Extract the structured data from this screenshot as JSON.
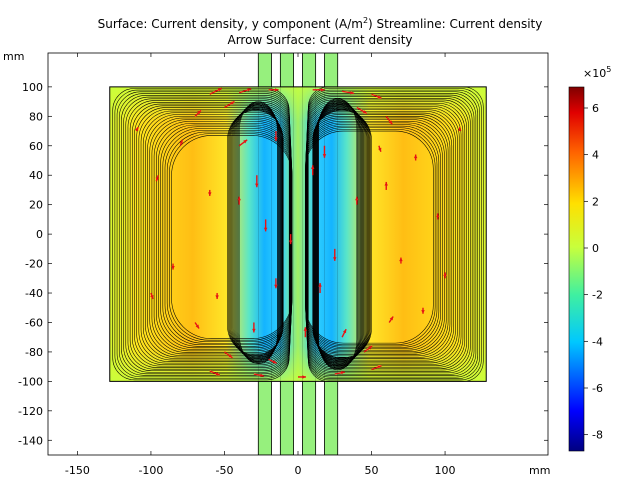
{
  "figure": {
    "title_prefix": "Surface: Current density, y component (A/m",
    "title_sup": "2",
    "title_suffix": ")  Streamline: Current density",
    "subtitle": "Arrow Surface: Current density"
  },
  "chart_data": {
    "type": "heatmap",
    "title": "Surface: Current density, y component (A/m2)  Streamline: Current density",
    "subtitle": "Arrow Surface: Current density",
    "xlabel": "mm",
    "ylabel": "mm",
    "xlim": [
      -170,
      170
    ],
    "ylim": [
      -150,
      123
    ],
    "xticks": [
      -150,
      -100,
      -50,
      0,
      50,
      100
    ],
    "yticks": [
      -140,
      -120,
      -100,
      -80,
      -60,
      -40,
      -20,
      0,
      20,
      40,
      60,
      80,
      100
    ],
    "grid": false,
    "plate": {
      "x": [
        -128,
        128
      ],
      "y": [
        -100,
        100
      ]
    },
    "electrodes": [
      {
        "x": [
          -27,
          -18
        ],
        "y": [
          -150,
          123
        ]
      },
      {
        "x": [
          -12,
          -3
        ],
        "y": [
          -150,
          123
        ]
      },
      {
        "x": [
          3,
          12
        ],
        "y": [
          -150,
          123
        ]
      },
      {
        "x": [
          18,
          27
        ],
        "y": [
          -150,
          123
        ]
      }
    ],
    "colorbar": {
      "range": [
        -8.7,
        6.9
      ],
      "ticks": [
        -8,
        -6,
        -4,
        -2,
        0,
        2,
        4,
        6
      ],
      "multiplier": "×10",
      "multiplier_exp": "5",
      "colormap": "rainbow"
    }
  },
  "colors": {
    "zero": "#c8ff3c",
    "positive_peak": "#ffb400",
    "negative_peak": "#1e96ff",
    "streamline": "#000000",
    "arrow": "#e61414",
    "electrode_fill": "#96f07d"
  }
}
